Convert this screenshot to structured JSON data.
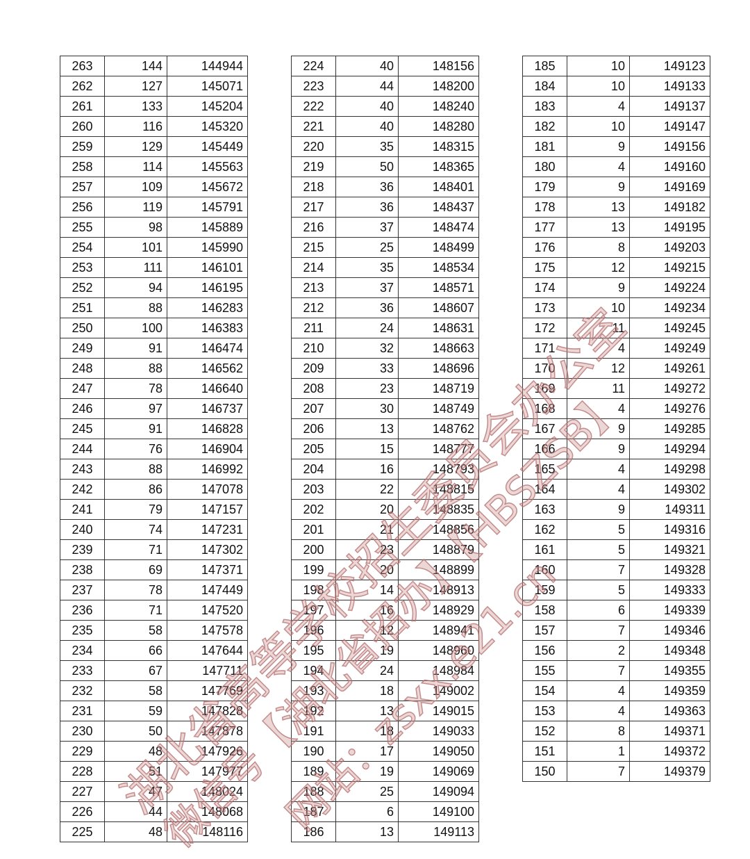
{
  "columns": [
    "score",
    "count",
    "cumulative"
  ],
  "tables": [
    {
      "rows": [
        [
          "263",
          "144",
          "144944"
        ],
        [
          "262",
          "127",
          "145071"
        ],
        [
          "261",
          "133",
          "145204"
        ],
        [
          "260",
          "116",
          "145320"
        ],
        [
          "259",
          "129",
          "145449"
        ],
        [
          "258",
          "114",
          "145563"
        ],
        [
          "257",
          "109",
          "145672"
        ],
        [
          "256",
          "119",
          "145791"
        ],
        [
          "255",
          "98",
          "145889"
        ],
        [
          "254",
          "101",
          "145990"
        ],
        [
          "253",
          "111",
          "146101"
        ],
        [
          "252",
          "94",
          "146195"
        ],
        [
          "251",
          "88",
          "146283"
        ],
        [
          "250",
          "100",
          "146383"
        ],
        [
          "249",
          "91",
          "146474"
        ],
        [
          "248",
          "88",
          "146562"
        ],
        [
          "247",
          "78",
          "146640"
        ],
        [
          "246",
          "97",
          "146737"
        ],
        [
          "245",
          "91",
          "146828"
        ],
        [
          "244",
          "76",
          "146904"
        ],
        [
          "243",
          "88",
          "146992"
        ],
        [
          "242",
          "86",
          "147078"
        ],
        [
          "241",
          "79",
          "147157"
        ],
        [
          "240",
          "74",
          "147231"
        ],
        [
          "239",
          "71",
          "147302"
        ],
        [
          "238",
          "69",
          "147371"
        ],
        [
          "237",
          "78",
          "147449"
        ],
        [
          "236",
          "71",
          "147520"
        ],
        [
          "235",
          "58",
          "147578"
        ],
        [
          "234",
          "66",
          "147644"
        ],
        [
          "233",
          "67",
          "147711"
        ],
        [
          "232",
          "58",
          "147769"
        ],
        [
          "231",
          "59",
          "147828"
        ],
        [
          "230",
          "50",
          "147878"
        ],
        [
          "229",
          "48",
          "147926"
        ],
        [
          "228",
          "51",
          "147977"
        ],
        [
          "227",
          "47",
          "148024"
        ],
        [
          "226",
          "44",
          "148068"
        ],
        [
          "225",
          "48",
          "148116"
        ]
      ]
    },
    {
      "rows": [
        [
          "224",
          "40",
          "148156"
        ],
        [
          "223",
          "44",
          "148200"
        ],
        [
          "222",
          "40",
          "148240"
        ],
        [
          "221",
          "40",
          "148280"
        ],
        [
          "220",
          "35",
          "148315"
        ],
        [
          "219",
          "50",
          "148365"
        ],
        [
          "218",
          "36",
          "148401"
        ],
        [
          "217",
          "36",
          "148437"
        ],
        [
          "216",
          "37",
          "148474"
        ],
        [
          "215",
          "25",
          "148499"
        ],
        [
          "214",
          "35",
          "148534"
        ],
        [
          "213",
          "37",
          "148571"
        ],
        [
          "212",
          "36",
          "148607"
        ],
        [
          "211",
          "24",
          "148631"
        ],
        [
          "210",
          "32",
          "148663"
        ],
        [
          "209",
          "33",
          "148696"
        ],
        [
          "208",
          "23",
          "148719"
        ],
        [
          "207",
          "30",
          "148749"
        ],
        [
          "206",
          "13",
          "148762"
        ],
        [
          "205",
          "15",
          "148777"
        ],
        [
          "204",
          "16",
          "148793"
        ],
        [
          "203",
          "22",
          "148815"
        ],
        [
          "202",
          "20",
          "148835"
        ],
        [
          "201",
          "21",
          "148856"
        ],
        [
          "200",
          "23",
          "148879"
        ],
        [
          "199",
          "20",
          "148899"
        ],
        [
          "198",
          "14",
          "148913"
        ],
        [
          "197",
          "16",
          "148929"
        ],
        [
          "196",
          "12",
          "148941"
        ],
        [
          "195",
          "19",
          "148960"
        ],
        [
          "194",
          "24",
          "148984"
        ],
        [
          "193",
          "18",
          "149002"
        ],
        [
          "192",
          "13",
          "149015"
        ],
        [
          "191",
          "18",
          "149033"
        ],
        [
          "190",
          "17",
          "149050"
        ],
        [
          "189",
          "19",
          "149069"
        ],
        [
          "188",
          "25",
          "149094"
        ],
        [
          "187",
          "6",
          "149100"
        ],
        [
          "186",
          "13",
          "149113"
        ]
      ]
    },
    {
      "rows": [
        [
          "185",
          "10",
          "149123"
        ],
        [
          "184",
          "10",
          "149133"
        ],
        [
          "183",
          "4",
          "149137"
        ],
        [
          "182",
          "10",
          "149147"
        ],
        [
          "181",
          "9",
          "149156"
        ],
        [
          "180",
          "4",
          "149160"
        ],
        [
          "179",
          "9",
          "149169"
        ],
        [
          "178",
          "13",
          "149182"
        ],
        [
          "177",
          "13",
          "149195"
        ],
        [
          "176",
          "8",
          "149203"
        ],
        [
          "175",
          "12",
          "149215"
        ],
        [
          "174",
          "9",
          "149224"
        ],
        [
          "173",
          "10",
          "149234"
        ],
        [
          "172",
          "11",
          "149245"
        ],
        [
          "171",
          "4",
          "149249"
        ],
        [
          "170",
          "12",
          "149261"
        ],
        [
          "169",
          "11",
          "149272"
        ],
        [
          "168",
          "4",
          "149276"
        ],
        [
          "167",
          "9",
          "149285"
        ],
        [
          "166",
          "9",
          "149294"
        ],
        [
          "165",
          "4",
          "149298"
        ],
        [
          "164",
          "4",
          "149302"
        ],
        [
          "163",
          "9",
          "149311"
        ],
        [
          "162",
          "5",
          "149316"
        ],
        [
          "161",
          "5",
          "149321"
        ],
        [
          "160",
          "7",
          "149328"
        ],
        [
          "159",
          "5",
          "149333"
        ],
        [
          "158",
          "6",
          "149339"
        ],
        [
          "157",
          "7",
          "149346"
        ],
        [
          "156",
          "2",
          "149348"
        ],
        [
          "155",
          "7",
          "149355"
        ],
        [
          "154",
          "4",
          "149359"
        ],
        [
          "153",
          "4",
          "149363"
        ],
        [
          "152",
          "8",
          "149371"
        ],
        [
          "151",
          "1",
          "149372"
        ],
        [
          "150",
          "7",
          "149379"
        ]
      ]
    }
  ],
  "watermark": {
    "line1": "湖北省高等学校招生委员会办公室",
    "line2": "微信号【湖北省招办】【HBSZSB】",
    "line3": "网站：zsxx.e21.cn",
    "color": "#c88c8c"
  }
}
